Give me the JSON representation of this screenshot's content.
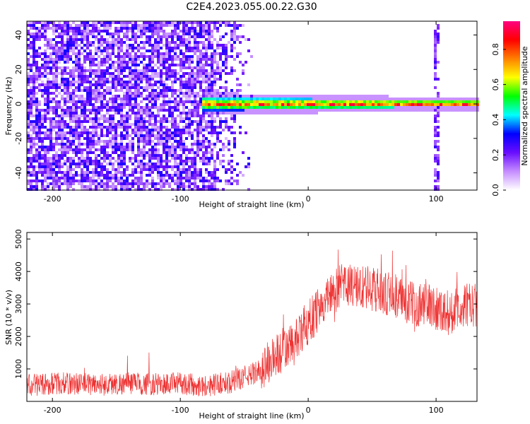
{
  "title": "C2E4.2023.055.00.22.G30",
  "chart_data": [
    {
      "type": "heatmap",
      "xlabel": "Height of straight line (km)",
      "ylabel": "Frequency (Hz)",
      "xlim": [
        -220,
        132
      ],
      "ylim": [
        -50,
        48
      ],
      "xticks": [
        -200,
        -100,
        0,
        100
      ],
      "yticks": [
        -40,
        -20,
        0,
        20,
        40
      ],
      "colorbar": {
        "label": "Normalized spectral amplitude",
        "range": [
          0,
          0.96
        ],
        "ticks": [
          0.0,
          0.2,
          0.4,
          0.6,
          0.8
        ],
        "colormap": [
          "#ffffff",
          "#c58cff",
          "#6a0dff",
          "#0000ff",
          "#00ffff",
          "#00ff00",
          "#ffff00",
          "#ff8000",
          "#ff0000",
          "#ff0080"
        ]
      },
      "features": [
        {
          "region": "noise",
          "x_range": [
            -220,
            -80
          ],
          "amplitude": 0.15
        },
        {
          "region": "narrowband_signal",
          "center_hz": 0,
          "x_range": [
            -82,
            132
          ],
          "amplitude_peak": 0.9
        },
        {
          "region": "vertical_artifact",
          "x": 100
        }
      ],
      "grid": false
    },
    {
      "type": "line",
      "xlabel": "Height of straight line (km)",
      "ylabel": "SNR (10 * v/v)",
      "xlim": [
        -220,
        132
      ],
      "ylim": [
        0,
        5200
      ],
      "xticks": [
        -200,
        -100,
        0,
        100
      ],
      "yticks": [
        1000,
        2000,
        3000,
        4000,
        5000
      ],
      "color": "#ee3333",
      "grid": false,
      "series": [
        {
          "x": [
            -220,
            -200,
            -180,
            -160,
            -140,
            -120,
            -100,
            -80,
            -60,
            -40,
            -25,
            -10,
            0,
            10,
            20,
            30,
            40,
            50,
            60,
            70,
            80,
            90,
            100,
            110,
            120,
            132
          ],
          "values": [
            500,
            550,
            550,
            520,
            560,
            520,
            560,
            480,
            600,
            900,
            1400,
            1800,
            2400,
            3000,
            3400,
            3600,
            3500,
            3500,
            3300,
            3200,
            3000,
            3000,
            2900,
            2700,
            2900,
            3000
          ]
        }
      ]
    }
  ]
}
